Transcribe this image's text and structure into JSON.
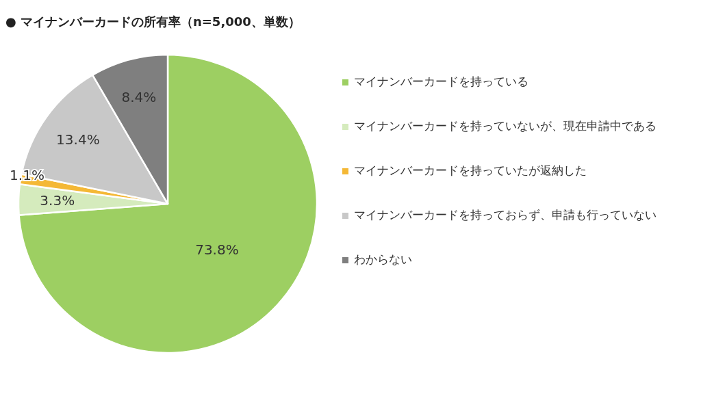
{
  "chart_data": {
    "type": "pie",
    "title": "● マイナンバーカードの所有率（n=5,000、単数）",
    "categories": [
      "マイナンバーカードを持っている",
      "マイナンバーカードを持っていないが、現在申請中である",
      "マイナンバーカードを持っていたが返納した",
      "マイナンバーカードを持っておらず、申請も行っていない",
      "わからない"
    ],
    "values": [
      73.8,
      3.3,
      1.1,
      13.4,
      8.4
    ],
    "colors": [
      "#9dcf62",
      "#d5ebbd",
      "#f4b836",
      "#c8c8c8",
      "#7f7f7f"
    ],
    "value_labels": [
      "73.8%",
      "3.3%",
      "1.1%",
      "13.4%",
      "8.4%"
    ],
    "legend": "right"
  }
}
